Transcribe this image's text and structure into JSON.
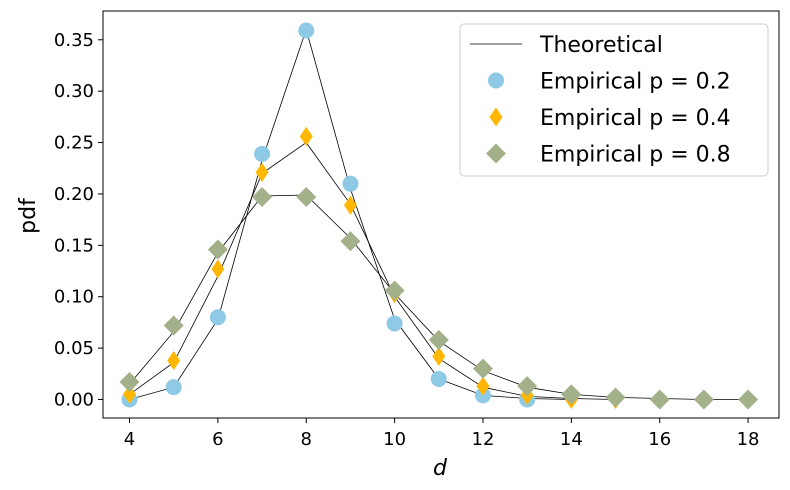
{
  "chart_data": {
    "type": "scatter",
    "title": "",
    "xlabel": "d",
    "ylabel": "pdf",
    "xlim": [
      3.4,
      18.7
    ],
    "ylim": [
      -0.018,
      0.378
    ],
    "x_ticks": [
      4,
      6,
      8,
      10,
      12,
      14,
      16,
      18
    ],
    "x_tick_labels": [
      "4",
      "6",
      "8",
      "10",
      "12",
      "14",
      "16",
      "18"
    ],
    "y_ticks": [
      0.0,
      0.05,
      0.1,
      0.15,
      0.2,
      0.25,
      0.3,
      0.35
    ],
    "y_tick_labels": [
      "0.00",
      "0.05",
      "0.10",
      "0.15",
      "0.20",
      "0.25",
      "0.30",
      "0.35"
    ],
    "grid": false,
    "legend_position": "top-right",
    "series": [
      {
        "name": "Theoretical",
        "kind": "line",
        "color": "#000000",
        "x": [
          4,
          5,
          6,
          7,
          8,
          9,
          10,
          11,
          12,
          13,
          14
        ],
        "y": [
          0.0,
          0.012,
          0.078,
          0.233,
          0.36,
          0.205,
          0.078,
          0.02,
          0.004,
          0.001,
          0.0
        ]
      },
      {
        "name": "Theoretical",
        "kind": "line",
        "color": "#000000",
        "x": [
          4,
          5,
          6,
          7,
          8,
          9,
          10,
          11,
          12,
          13,
          14,
          15
        ],
        "y": [
          0.005,
          0.036,
          0.12,
          0.22,
          0.25,
          0.19,
          0.1,
          0.04,
          0.012,
          0.003,
          0.001,
          0.0
        ]
      },
      {
        "name": "Theoretical",
        "kind": "line",
        "color": "#000000",
        "x": [
          4,
          5,
          6,
          7,
          8,
          9,
          10,
          11,
          12,
          13,
          14,
          15,
          16,
          17,
          18
        ],
        "y": [
          0.015,
          0.066,
          0.143,
          0.198,
          0.199,
          0.157,
          0.103,
          0.057,
          0.028,
          0.012,
          0.005,
          0.002,
          0.001,
          0.0,
          0.0
        ]
      },
      {
        "name": "Empirical p = 0.2",
        "kind": "points",
        "marker": "circle",
        "color": "#8ecae6",
        "x": [
          4,
          5,
          6,
          7,
          8,
          9,
          10,
          11,
          12,
          13
        ],
        "y": [
          0.0,
          0.012,
          0.08,
          0.239,
          0.359,
          0.21,
          0.074,
          0.02,
          0.004,
          0.0
        ]
      },
      {
        "name": "Empirical p = 0.4",
        "kind": "points",
        "marker": "thin_diamond",
        "color": "#ffb703",
        "x": [
          4,
          5,
          6,
          7,
          8,
          9,
          10,
          11,
          12,
          13,
          14,
          15
        ],
        "y": [
          0.005,
          0.038,
          0.127,
          0.221,
          0.256,
          0.189,
          0.103,
          0.042,
          0.013,
          0.004,
          0.0,
          0.0
        ]
      },
      {
        "name": "Empirical p = 0.8",
        "kind": "points",
        "marker": "diamond",
        "color": "#a3b18a",
        "x": [
          4,
          5,
          6,
          7,
          8,
          9,
          10,
          11,
          12,
          13,
          14,
          15,
          16,
          17,
          18
        ],
        "y": [
          0.017,
          0.072,
          0.146,
          0.197,
          0.197,
          0.154,
          0.106,
          0.058,
          0.03,
          0.013,
          0.005,
          0.002,
          0.0,
          0.0,
          0.0
        ]
      }
    ],
    "legend": [
      {
        "label": "Theoretical",
        "marker": "line",
        "color": "#000000"
      },
      {
        "label": "Empirical p = 0.2",
        "marker": "circle",
        "color": "#8ecae6"
      },
      {
        "label": "Empirical p = 0.4",
        "marker": "thin_diamond",
        "color": "#ffb703"
      },
      {
        "label": "Empirical p = 0.8",
        "marker": "diamond",
        "color": "#a3b18a"
      }
    ]
  }
}
